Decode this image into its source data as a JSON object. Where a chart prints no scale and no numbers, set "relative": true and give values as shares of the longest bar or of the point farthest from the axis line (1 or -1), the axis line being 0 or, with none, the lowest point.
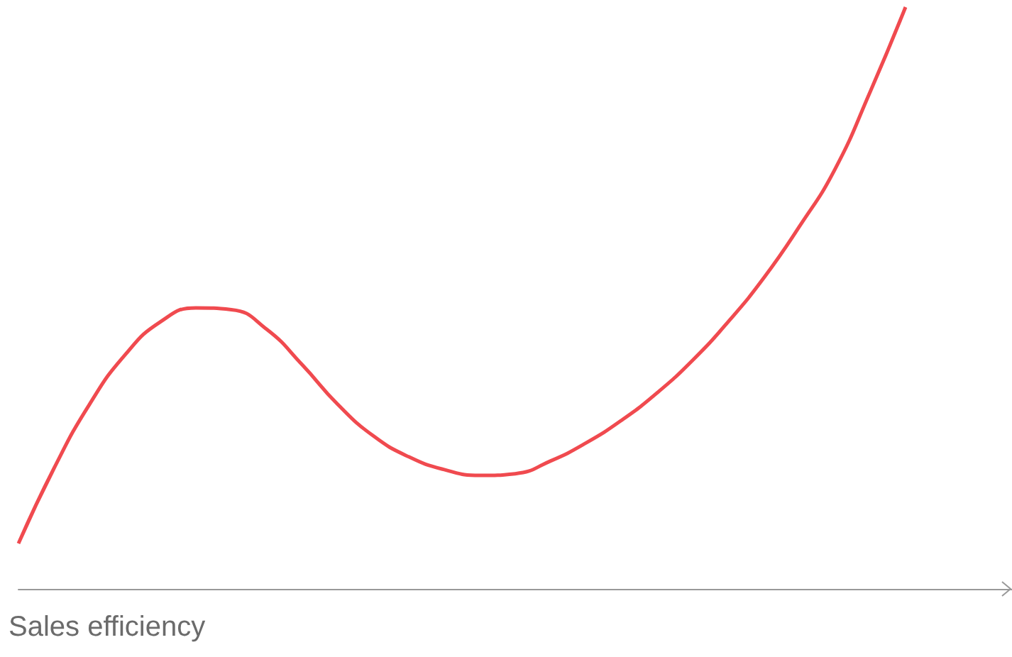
{
  "chart_data": {
    "type": "line",
    "relative": true,
    "xlabel": "Sales efficiency",
    "categories": [
      null,
      null,
      null,
      null,
      null,
      null,
      null,
      null,
      null,
      null,
      null,
      null,
      null,
      null,
      null,
      null,
      null,
      null,
      null,
      null,
      null,
      null,
      null,
      null,
      null,
      null,
      null,
      null,
      null
    ],
    "series": [
      {
        "color": "#f04a4f",
        "values": [
          0.078,
          0.207,
          0.317,
          0.402,
          0.459,
          0.483,
          0.48,
          0.446,
          0.385,
          0.317,
          0.263,
          0.227,
          0.205,
          0.195,
          0.198,
          0.22,
          0.251,
          0.29,
          0.337,
          0.393,
          0.459,
          0.534,
          0.622,
          0.72,
          0.854,
          1,
          null,
          null,
          null
        ]
      }
    ]
  }
}
